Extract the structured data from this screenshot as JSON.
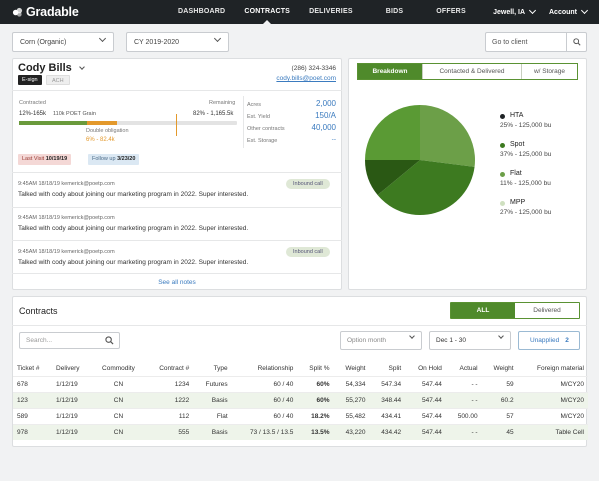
{
  "brand": {
    "name": "Gradable"
  },
  "nav": {
    "links": [
      "DASHBOARD",
      "CONTRACTS",
      "DELIVERIES",
      "BIDS",
      "OFFERS"
    ],
    "active_index": 1,
    "location": "Jewell, IA",
    "account": "Account"
  },
  "filters": {
    "crop": "Corn (Organic)",
    "crop_year": "CY 2019-2020",
    "goto_placeholder": "Go to client"
  },
  "client": {
    "name": "Cody Bills",
    "badge_esign": "E-sign",
    "badge_ach": "ACH",
    "phone": "(286) 324-3346",
    "email": "cody.bills@poet.com",
    "contracted_label": "Contracted",
    "contracted_range": "12%-165k",
    "contracted_note": "110k POET Grain",
    "remaining_label": "Remaining",
    "remaining_range": "82% - 1,165.5k",
    "double_label": "Double obligation",
    "double_value": "6% - 82.4k",
    "progress": {
      "green_pct": 12,
      "orange_pct": 6
    },
    "stats": [
      {
        "label": "Acres",
        "value": "2,000"
      },
      {
        "label": "Est. Yield",
        "value": "150/A"
      },
      {
        "label": "Other contracts",
        "value": "40,000"
      },
      {
        "label": "Est. Storage",
        "value": "--"
      }
    ],
    "last_visit_label": "Last Visit",
    "last_visit": "10/19/19",
    "follow_up_label": "Follow up",
    "follow_up": "3/23/20"
  },
  "notes": [
    {
      "meta": "9:45AM 18/18/19 kemerick@poetp.com",
      "text": "Talked with cody about joining our marketing program in 2022. Super interested.",
      "tag": "Inbound call"
    },
    {
      "meta": "9:45AM 18/18/19 kemerick@poetp.com",
      "text": "Talked with cody about joining our marketing program in 2022. Super interested.",
      "tag": ""
    },
    {
      "meta": "9:45AM 18/18/19 kemerick@poetp.com",
      "text": "Talked with cody about joining our marketing program in 2022. Super interested.",
      "tag": "Inbound call"
    }
  ],
  "see_all_notes": "See all notes",
  "breakdown": {
    "tabs": [
      "Breakdown",
      "Contacted & Delivered",
      "w/ Storage"
    ],
    "active_tab": 0
  },
  "chart_data": {
    "type": "pie",
    "categories": [
      "HTA",
      "Spot",
      "Flat",
      "MPP"
    ],
    "values": [
      25,
      37,
      11,
      27
    ],
    "labels": [
      "25% - 125,000 bu",
      "37% - 125,000 bu",
      "11% - 125,000 bu",
      "27% - 125,000 bu"
    ],
    "colors": [
      "#5a9a34",
      "#3d7a20",
      "#2a5814",
      "#6c9f48"
    ],
    "legend": "right"
  },
  "contracts": {
    "title": "Contracts",
    "toggle": [
      "ALL",
      "Delivered"
    ],
    "search_placeholder": "Search...",
    "option_month": "Option month",
    "date_range": "Dec 1 - 30",
    "unapplied_label": "Unapplied",
    "unapplied_count": "2",
    "columns": [
      "Ticket #",
      "Delivery",
      "Commodity",
      "Contract #",
      "Type",
      "Relationship",
      "Split %",
      "Weight",
      "Split",
      "On Hold",
      "Actual",
      "Weight",
      "Foreign material"
    ],
    "rows": [
      [
        "678",
        "1/12/19",
        "CN",
        "1234",
        "Futures",
        "60 / 40",
        "60%",
        "54,334",
        "547.34",
        "547.44",
        "- -",
        "59",
        "M/CY20"
      ],
      [
        "123",
        "1/12/19",
        "CN",
        "1222",
        "Basis",
        "60 / 40",
        "60%",
        "55,270",
        "348.44",
        "547.44",
        "- -",
        "60.2",
        "M/CY20"
      ],
      [
        "589",
        "1/12/19",
        "CN",
        "112",
        "Flat",
        "60 / 40",
        "18.2%",
        "55,482",
        "434.41",
        "547.44",
        "500.00",
        "57",
        "M/CY20"
      ],
      [
        "978",
        "1/12/19",
        "CN",
        "555",
        "Basis",
        "73 / 13.5 / 13.5",
        "13.5%",
        "43,220",
        "434.42",
        "547.44",
        "- -",
        "45",
        "Table Cell"
      ]
    ]
  }
}
